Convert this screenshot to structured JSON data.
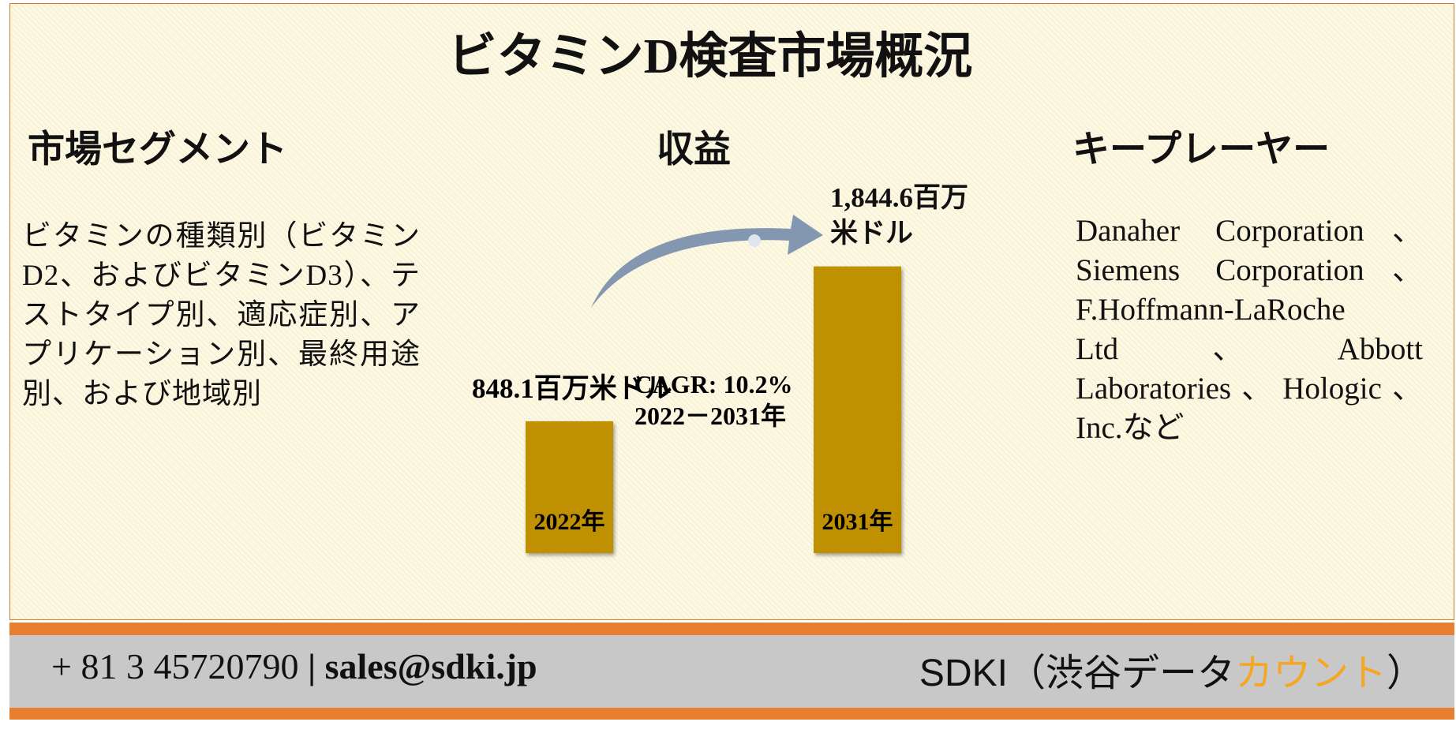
{
  "header": {
    "title": "ビタミンD検査市場概況"
  },
  "segments": {
    "heading": "市場セグメント",
    "text": "ビタミンの種類別（ビタミンD2、およびビタミンD3）、テストタイプ別、適応症別、アプリケーション別、最終用途別、および地域別"
  },
  "revenue": {
    "heading": "収益",
    "bars": [
      {
        "year": "2022年",
        "value": 848.1,
        "value_label": "848.1百万米ドル"
      },
      {
        "year": "2031年",
        "value": 1844.6,
        "value_label": "1,844.6百万米ドル"
      }
    ],
    "cagr": "CAGR: 10.2%",
    "period": "2022－2031年"
  },
  "players": {
    "heading": "キープレーヤー",
    "text": "Danaher Corporation、Siemens Corporation、F.Hoffmann-LaRoche Ltd、Abbott Laboratories、Hologic、Inc.など"
  },
  "footer": {
    "phone": "+ 81 3 45720790",
    "separator": "|",
    "email": "sales@sdki.jp",
    "company": "SDKI（渋谷データ",
    "company_highlight": "カウント",
    "company_end": "）"
  }
}
